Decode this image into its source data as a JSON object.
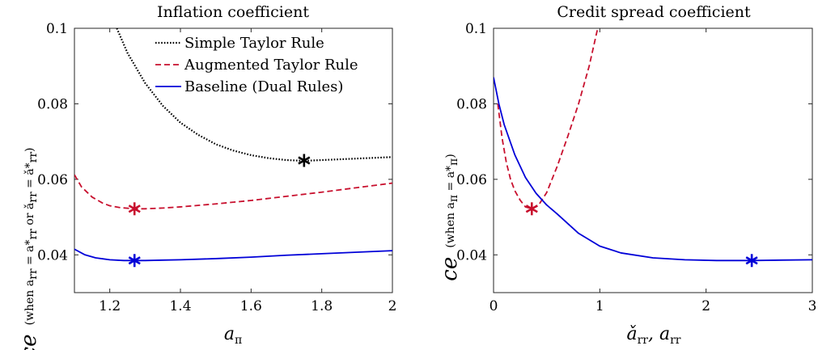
{
  "figure": {
    "colors": {
      "simple": "#000000",
      "augmented": "#C8102E",
      "baseline": "#0000D8"
    },
    "legend_position": "top-right of left panel"
  },
  "chart_data": [
    {
      "type": "line",
      "title": "Inflation coefficient",
      "xlabel": "a_π",
      "ylabel": "ce",
      "ylabel_qualifier": "(when a_rr = a*_rr or ǎ_rr = ǎ*_rr)",
      "xlim": [
        1.1,
        2.0
      ],
      "ylim": [
        0.03,
        0.1
      ],
      "xticks": [
        "1.2",
        "1.4",
        "1.6",
        "1.8",
        "2"
      ],
      "xtick_values": [
        1.2,
        1.4,
        1.6,
        1.8,
        2.0
      ],
      "yticks": [
        "0.04",
        "0.06",
        "0.08",
        "0.1"
      ],
      "ytick_values": [
        0.04,
        0.06,
        0.08,
        0.1
      ],
      "grid": false,
      "legend": [
        {
          "key": "simple",
          "label": "Simple Taylor Rule",
          "style": "dotted"
        },
        {
          "key": "augmented",
          "label": "Augmented Taylor Rule",
          "style": "dashed"
        },
        {
          "key": "baseline",
          "label": "Baseline (Dual Rules)",
          "style": "solid"
        }
      ],
      "series": [
        {
          "key": "simple",
          "name": "Simple Taylor Rule",
          "style": "dotted",
          "x": [
            1.22,
            1.25,
            1.3,
            1.35,
            1.4,
            1.45,
            1.5,
            1.55,
            1.6,
            1.65,
            1.7,
            1.75,
            1.8,
            1.85,
            1.9,
            1.95,
            2.0
          ],
          "y": [
            0.1,
            0.0935,
            0.0855,
            0.0795,
            0.075,
            0.0718,
            0.0693,
            0.0676,
            0.0664,
            0.0656,
            0.0651,
            0.0649,
            0.0651,
            0.0653,
            0.0655,
            0.0657,
            0.0659
          ]
        },
        {
          "key": "augmented",
          "name": "Augmented Taylor Rule",
          "style": "dashed",
          "x": [
            1.1,
            1.12,
            1.15,
            1.18,
            1.2,
            1.23,
            1.27,
            1.3,
            1.35,
            1.4,
            1.5,
            1.6,
            1.7,
            1.8,
            1.9,
            2.0
          ],
          "y": [
            0.0612,
            0.058,
            0.0553,
            0.0537,
            0.053,
            0.0525,
            0.0522,
            0.0522,
            0.0524,
            0.0527,
            0.0535,
            0.0544,
            0.0555,
            0.0566,
            0.0578,
            0.059
          ]
        },
        {
          "key": "baseline",
          "name": "Baseline (Dual Rules)",
          "style": "solid",
          "x": [
            1.1,
            1.13,
            1.16,
            1.2,
            1.24,
            1.27,
            1.3,
            1.35,
            1.4,
            1.5,
            1.6,
            1.7,
            1.8,
            1.9,
            2.0
          ],
          "y": [
            0.0415,
            0.04,
            0.0392,
            0.0387,
            0.0385,
            0.0385,
            0.0385,
            0.0386,
            0.0387,
            0.039,
            0.0394,
            0.0399,
            0.0403,
            0.0407,
            0.0411
          ]
        }
      ],
      "markers": [
        {
          "series": "simple",
          "x": 1.75,
          "y": 0.065
        },
        {
          "series": "augmented",
          "x": 1.27,
          "y": 0.0522
        },
        {
          "series": "baseline",
          "x": 1.27,
          "y": 0.0385
        }
      ]
    },
    {
      "type": "line",
      "title": "Credit spread coefficient",
      "xlabel": "ǎ_rr, a_rr",
      "ylabel": "ce",
      "ylabel_qualifier": "(when a_π = a*_π)",
      "xlim": [
        0,
        3
      ],
      "ylim": [
        0.03,
        0.1
      ],
      "xticks": [
        "0",
        "1",
        "2",
        "3"
      ],
      "xtick_values": [
        0,
        1,
        2,
        3
      ],
      "yticks": [
        "0.04",
        "0.06",
        "0.08",
        "0.1"
      ],
      "ytick_values": [
        0.04,
        0.06,
        0.08,
        0.1
      ],
      "grid": false,
      "series": [
        {
          "key": "augmented",
          "name": "Augmented Taylor Rule",
          "style": "dashed",
          "x": [
            0.04,
            0.08,
            0.12,
            0.16,
            0.2,
            0.25,
            0.3,
            0.36,
            0.42,
            0.5,
            0.6,
            0.7,
            0.8,
            0.9,
            0.98
          ],
          "y": [
            0.08,
            0.071,
            0.0645,
            0.06,
            0.057,
            0.0545,
            0.0527,
            0.0522,
            0.053,
            0.0565,
            0.0635,
            0.0715,
            0.08,
            0.09,
            0.1
          ]
        },
        {
          "key": "baseline",
          "name": "Baseline (Dual Rules)",
          "style": "solid",
          "x": [
            0,
            0.05,
            0.1,
            0.2,
            0.3,
            0.4,
            0.5,
            0.6,
            0.8,
            1.0,
            1.2,
            1.5,
            1.8,
            2.1,
            2.43,
            2.7,
            3.0
          ],
          "y": [
            0.087,
            0.08,
            0.0745,
            0.0665,
            0.0605,
            0.0563,
            0.0532,
            0.0508,
            0.0457,
            0.0423,
            0.0405,
            0.0392,
            0.0387,
            0.0385,
            0.0385,
            0.0386,
            0.0387
          ]
        }
      ],
      "markers": [
        {
          "series": "augmented",
          "x": 0.36,
          "y": 0.0522
        },
        {
          "series": "baseline",
          "x": 2.43,
          "y": 0.0385
        }
      ]
    }
  ]
}
